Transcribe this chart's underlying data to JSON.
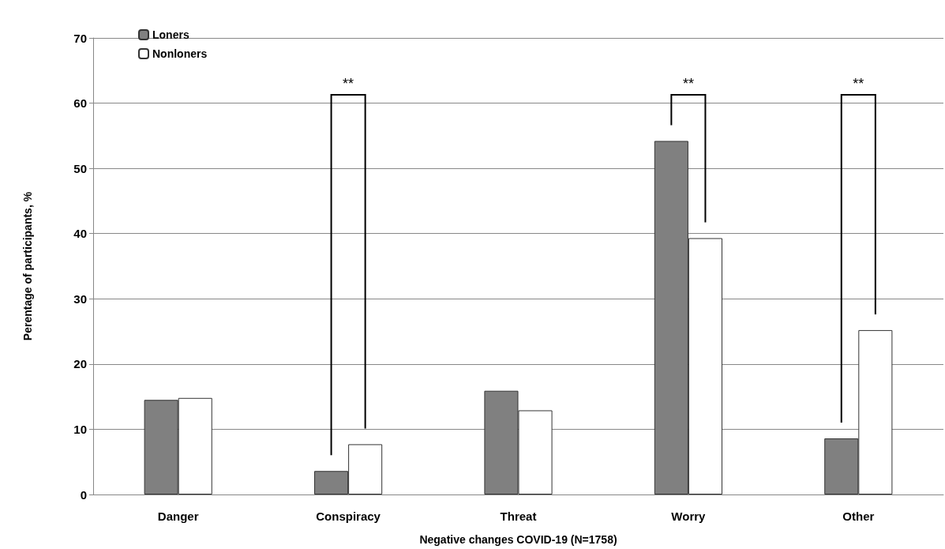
{
  "chart_data": {
    "type": "bar",
    "xlabel": "Negative changes COVID-19 (N=1758)",
    "ylabel": "Perentage of participants, %",
    "categories": [
      "Danger",
      "Conspiracy",
      "Threat",
      "Worry",
      "Other"
    ],
    "series": [
      {
        "name": "Loners",
        "color": "#808080",
        "values": [
          14.5,
          3.6,
          15.9,
          54.2,
          8.6
        ]
      },
      {
        "name": "Nonloners",
        "color": "#ffffff",
        "values": [
          14.8,
          7.7,
          12.9,
          39.3,
          25.2
        ]
      }
    ],
    "ylim": [
      0,
      70
    ],
    "yticks": [
      0,
      10,
      20,
      30,
      40,
      50,
      60,
      70
    ],
    "grid": "y",
    "legend": "top left",
    "annotations": [
      "**",
      "**",
      "**"
    ]
  }
}
